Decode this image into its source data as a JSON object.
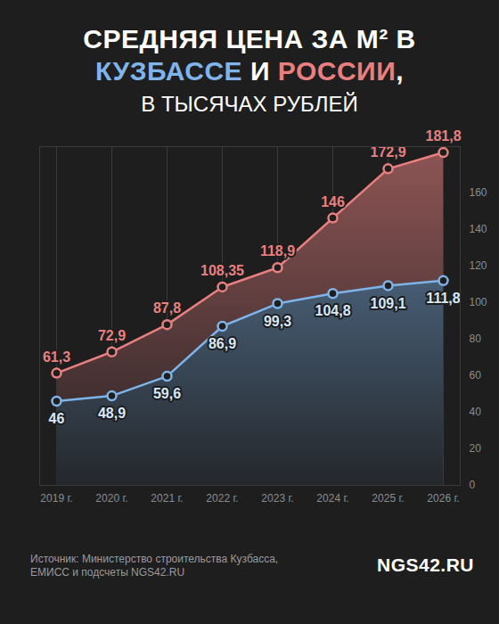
{
  "chart_data": {
    "type": "line",
    "title": "СРЕДНЯЯ ЦЕНА ЗА М² В КУЗБАССЕ И РОССИИ,",
    "subtitle": "В ТЫСЯЧАХ РУБЛЕЙ",
    "source": "Источник: Министерство строительства Кузбасса, ЕМИСС и подсчеты NGS42.RU",
    "logo": "NGS42.RU",
    "categories": [
      "2019 г.",
      "2020 г.",
      "2021 г.",
      "2022 г.",
      "2023 г.",
      "2024 г.",
      "2025 г.",
      "2026 г."
    ],
    "series": [
      {
        "name": "РОССИИ",
        "color": "#e8807f",
        "values": [
          61.3,
          72.9,
          87.8,
          108.35,
          118.9,
          146,
          172.9,
          181.8
        ],
        "value_labels": [
          "61,3",
          "72,9",
          "87,8",
          "108,35",
          "118,9",
          "146",
          "172,9",
          "181,8"
        ]
      },
      {
        "name": "КУЗБАССЕ",
        "color": "#7fb4ea",
        "values": [
          46,
          48.9,
          59.6,
          86.9,
          99.3,
          104.8,
          109.1,
          111.8
        ],
        "value_labels": [
          "46",
          "48,9",
          "59,6",
          "86,9",
          "99,3",
          "104,8",
          "109,1",
          "111,8"
        ]
      }
    ],
    "ylim": [
      0,
      185
    ],
    "yticks": [
      0,
      20,
      40,
      60,
      80,
      100,
      120,
      140,
      160
    ],
    "grid": true,
    "data_labels": true,
    "marker": "circle"
  }
}
